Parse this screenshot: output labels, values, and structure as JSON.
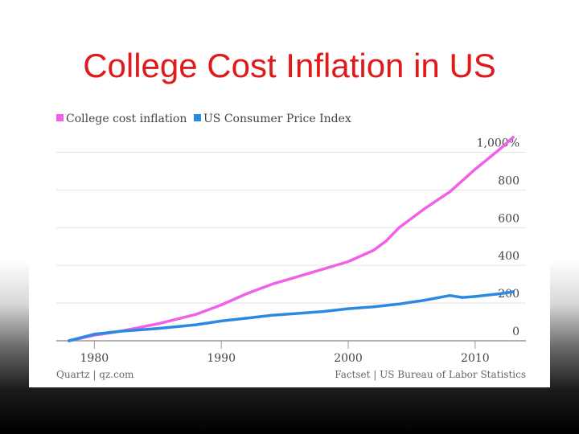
{
  "slide": {
    "title": "College Cost Inflation in US"
  },
  "colors": {
    "college": "#f060e8",
    "cpi": "#2a8ae0",
    "title": "#e0191b"
  },
  "chart_data": {
    "type": "line",
    "xlim": [
      1977,
      2014
    ],
    "ylim": [
      0,
      1100
    ],
    "x_ticks": [
      1980,
      1990,
      2000,
      2010
    ],
    "x_tick_labels": [
      "1980",
      "1990",
      "2000",
      "2010"
    ],
    "y_ticks": [
      0,
      200,
      400,
      600,
      800,
      1000
    ],
    "y_tick_labels": [
      "0",
      "200",
      "400",
      "600",
      "800",
      "1,000%"
    ],
    "grid": true,
    "legend_position": "top-left",
    "series": [
      {
        "name": "College cost inflation",
        "color": "#f060e8",
        "points": [
          [
            1978,
            0
          ],
          [
            1980,
            30
          ],
          [
            1982,
            50
          ],
          [
            1985,
            90
          ],
          [
            1988,
            140
          ],
          [
            1990,
            190
          ],
          [
            1992,
            250
          ],
          [
            1994,
            300
          ],
          [
            1996,
            340
          ],
          [
            1998,
            380
          ],
          [
            2000,
            420
          ],
          [
            2002,
            480
          ],
          [
            2003,
            530
          ],
          [
            2004,
            600
          ],
          [
            2006,
            700
          ],
          [
            2008,
            790
          ],
          [
            2010,
            910
          ],
          [
            2012,
            1020
          ],
          [
            2013,
            1080
          ]
        ]
      },
      {
        "name": "US Consumer Price Index",
        "color": "#2a8ae0",
        "points": [
          [
            1978,
            0
          ],
          [
            1980,
            35
          ],
          [
            1982,
            50
          ],
          [
            1985,
            65
          ],
          [
            1988,
            85
          ],
          [
            1990,
            105
          ],
          [
            1992,
            120
          ],
          [
            1994,
            135
          ],
          [
            1996,
            145
          ],
          [
            1998,
            155
          ],
          [
            2000,
            170
          ],
          [
            2002,
            180
          ],
          [
            2004,
            195
          ],
          [
            2006,
            215
          ],
          [
            2008,
            240
          ],
          [
            2009,
            230
          ],
          [
            2010,
            235
          ],
          [
            2012,
            250
          ],
          [
            2013,
            260
          ]
        ]
      }
    ],
    "source_left": "Quartz | qz.com",
    "source_right": "Factset | US Bureau of Labor Statistics"
  }
}
